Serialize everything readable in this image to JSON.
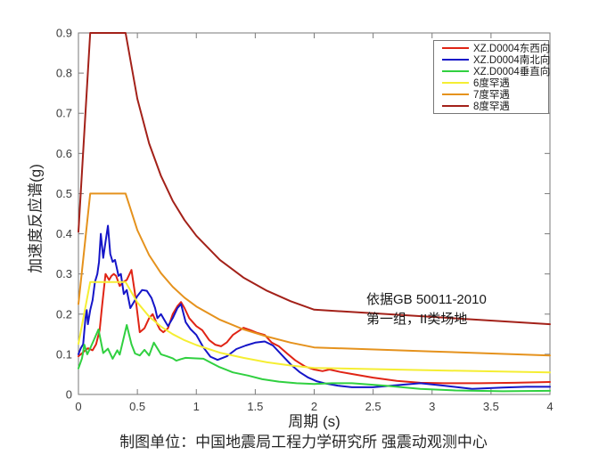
{
  "chart_data": {
    "type": "line",
    "title": "",
    "xlabel": "周期 (s)",
    "ylabel": "加速度反应谱(g)",
    "caption": "制图单位：中国地震局工程力学研究所 强震动观测中心",
    "annotation": {
      "line1": "依据GB 50011-2010",
      "line2": "第一组，II类场地"
    },
    "xlim": [
      0,
      4
    ],
    "ylim": [
      0,
      0.9
    ],
    "x_ticks": [
      0,
      0.5,
      1,
      1.5,
      2,
      2.5,
      3,
      3.5,
      4
    ],
    "x_tick_labels": [
      "0",
      "0.5",
      "1",
      "1.5",
      "2",
      "2.5",
      "3",
      "3.5",
      "4"
    ],
    "y_ticks": [
      0,
      0.1,
      0.2,
      0.3,
      0.4,
      0.5,
      0.6,
      0.7,
      0.8,
      0.9
    ],
    "y_tick_labels": [
      "0",
      "0.1",
      "0.2",
      "0.3",
      "0.4",
      "0.5",
      "0.6",
      "0.7",
      "0.8",
      "0.9"
    ],
    "grid": false,
    "legend_position": "inside-top-right",
    "axis_color": "#7a7a7a",
    "tick_label_color": "#3c3c3c",
    "series": [
      {
        "name": "XZ.D0004东西向",
        "color": "#e02415",
        "points": [
          [
            0,
            0.095
          ],
          [
            0.04,
            0.105
          ],
          [
            0.08,
            0.115
          ],
          [
            0.12,
            0.11
          ],
          [
            0.15,
            0.125
          ],
          [
            0.18,
            0.16
          ],
          [
            0.2,
            0.22
          ],
          [
            0.23,
            0.3
          ],
          [
            0.26,
            0.285
          ],
          [
            0.28,
            0.295
          ],
          [
            0.3,
            0.3
          ],
          [
            0.32,
            0.295
          ],
          [
            0.35,
            0.27
          ],
          [
            0.38,
            0.28
          ],
          [
            0.41,
            0.285
          ],
          [
            0.45,
            0.31
          ],
          [
            0.48,
            0.25
          ],
          [
            0.52,
            0.155
          ],
          [
            0.56,
            0.165
          ],
          [
            0.6,
            0.19
          ],
          [
            0.63,
            0.2
          ],
          [
            0.66,
            0.18
          ],
          [
            0.69,
            0.162
          ],
          [
            0.72,
            0.155
          ],
          [
            0.76,
            0.165
          ],
          [
            0.8,
            0.2
          ],
          [
            0.84,
            0.22
          ],
          [
            0.87,
            0.23
          ],
          [
            0.9,
            0.215
          ],
          [
            0.94,
            0.19
          ],
          [
            1.0,
            0.17
          ],
          [
            1.05,
            0.16
          ],
          [
            1.11,
            0.135
          ],
          [
            1.16,
            0.124
          ],
          [
            1.21,
            0.12
          ],
          [
            1.26,
            0.13
          ],
          [
            1.31,
            0.148
          ],
          [
            1.36,
            0.158
          ],
          [
            1.4,
            0.166
          ],
          [
            1.46,
            0.16
          ],
          [
            1.52,
            0.153
          ],
          [
            1.58,
            0.148
          ],
          [
            1.64,
            0.129
          ],
          [
            1.7,
            0.12
          ],
          [
            1.77,
            0.102
          ],
          [
            1.84,
            0.085
          ],
          [
            1.92,
            0.07
          ],
          [
            2.0,
            0.062
          ],
          [
            2.07,
            0.058
          ],
          [
            2.13,
            0.062
          ],
          [
            2.22,
            0.056
          ],
          [
            2.32,
            0.051
          ],
          [
            2.5,
            0.042
          ],
          [
            2.7,
            0.034
          ],
          [
            2.9,
            0.029
          ],
          [
            3.1,
            0.028
          ],
          [
            3.4,
            0.028
          ],
          [
            3.7,
            0.029
          ],
          [
            4.0,
            0.031
          ]
        ]
      },
      {
        "name": "XZ.D0004南北向",
        "color": "#1515c8",
        "points": [
          [
            0,
            0.1
          ],
          [
            0.02,
            0.115
          ],
          [
            0.04,
            0.125
          ],
          [
            0.06,
            0.19
          ],
          [
            0.07,
            0.21
          ],
          [
            0.08,
            0.175
          ],
          [
            0.1,
            0.21
          ],
          [
            0.12,
            0.235
          ],
          [
            0.14,
            0.28
          ],
          [
            0.16,
            0.3
          ],
          [
            0.175,
            0.33
          ],
          [
            0.19,
            0.4
          ],
          [
            0.21,
            0.34
          ],
          [
            0.23,
            0.38
          ],
          [
            0.25,
            0.42
          ],
          [
            0.27,
            0.35
          ],
          [
            0.29,
            0.33
          ],
          [
            0.31,
            0.335
          ],
          [
            0.34,
            0.295
          ],
          [
            0.36,
            0.3
          ],
          [
            0.385,
            0.25
          ],
          [
            0.41,
            0.26
          ],
          [
            0.44,
            0.215
          ],
          [
            0.47,
            0.23
          ],
          [
            0.5,
            0.245
          ],
          [
            0.54,
            0.26
          ],
          [
            0.58,
            0.258
          ],
          [
            0.62,
            0.24
          ],
          [
            0.65,
            0.215
          ],
          [
            0.67,
            0.19
          ],
          [
            0.7,
            0.2
          ],
          [
            0.73,
            0.185
          ],
          [
            0.76,
            0.17
          ],
          [
            0.8,
            0.19
          ],
          [
            0.84,
            0.215
          ],
          [
            0.87,
            0.225
          ],
          [
            0.91,
            0.18
          ],
          [
            0.95,
            0.163
          ],
          [
            1.0,
            0.148
          ],
          [
            1.06,
            0.117
          ],
          [
            1.12,
            0.094
          ],
          [
            1.18,
            0.086
          ],
          [
            1.26,
            0.095
          ],
          [
            1.34,
            0.113
          ],
          [
            1.42,
            0.122
          ],
          [
            1.5,
            0.129
          ],
          [
            1.58,
            0.132
          ],
          [
            1.65,
            0.122
          ],
          [
            1.72,
            0.1
          ],
          [
            1.8,
            0.075
          ],
          [
            1.88,
            0.055
          ],
          [
            1.95,
            0.042
          ],
          [
            2.02,
            0.033
          ],
          [
            2.1,
            0.027
          ],
          [
            2.2,
            0.022
          ],
          [
            2.32,
            0.018
          ],
          [
            2.5,
            0.018
          ],
          [
            2.7,
            0.023
          ],
          [
            2.9,
            0.028
          ],
          [
            3.1,
            0.022
          ],
          [
            3.34,
            0.014
          ],
          [
            3.6,
            0.017
          ],
          [
            3.8,
            0.019
          ],
          [
            4.0,
            0.019
          ]
        ]
      },
      {
        "name": "XZ.D0004垂直向",
        "color": "#30d040",
        "points": [
          [
            0,
            0.065
          ],
          [
            0.03,
            0.09
          ],
          [
            0.05,
            0.124
          ],
          [
            0.075,
            0.1
          ],
          [
            0.1,
            0.115
          ],
          [
            0.13,
            0.135
          ],
          [
            0.17,
            0.162
          ],
          [
            0.21,
            0.103
          ],
          [
            0.25,
            0.114
          ],
          [
            0.29,
            0.089
          ],
          [
            0.33,
            0.11
          ],
          [
            0.35,
            0.099
          ],
          [
            0.41,
            0.173
          ],
          [
            0.45,
            0.125
          ],
          [
            0.48,
            0.102
          ],
          [
            0.52,
            0.097
          ],
          [
            0.56,
            0.111
          ],
          [
            0.6,
            0.097
          ],
          [
            0.64,
            0.129
          ],
          [
            0.7,
            0.1
          ],
          [
            0.75,
            0.095
          ],
          [
            0.8,
            0.09
          ],
          [
            0.83,
            0.084
          ],
          [
            0.87,
            0.088
          ],
          [
            0.91,
            0.091
          ],
          [
            0.98,
            0.09
          ],
          [
            1.06,
            0.089
          ],
          [
            1.13,
            0.078
          ],
          [
            1.19,
            0.069
          ],
          [
            1.31,
            0.055
          ],
          [
            1.44,
            0.047
          ],
          [
            1.56,
            0.038
          ],
          [
            1.7,
            0.032
          ],
          [
            1.85,
            0.028
          ],
          [
            2.0,
            0.026
          ],
          [
            2.15,
            0.028
          ],
          [
            2.32,
            0.028
          ],
          [
            2.6,
            0.022
          ],
          [
            2.9,
            0.014
          ],
          [
            3.2,
            0.01
          ],
          [
            3.6,
            0.008
          ],
          [
            4.0,
            0.009
          ]
        ]
      },
      {
        "name": "6度罕遇",
        "color": "#f5ee33",
        "points": [
          [
            0,
            0.126
          ],
          [
            0.1,
            0.28
          ],
          [
            0.4,
            0.28
          ],
          [
            0.5,
            0.229
          ],
          [
            0.6,
            0.194
          ],
          [
            0.7,
            0.169
          ],
          [
            0.8,
            0.15
          ],
          [
            0.9,
            0.135
          ],
          [
            1.0,
            0.123
          ],
          [
            1.2,
            0.104
          ],
          [
            1.4,
            0.091
          ],
          [
            1.6,
            0.08
          ],
          [
            1.8,
            0.072
          ],
          [
            2.0,
            0.066
          ],
          [
            3.0,
            0.06
          ],
          [
            4.0,
            0.055
          ]
        ]
      },
      {
        "name": "7度罕遇",
        "color": "#e5921d",
        "points": [
          [
            0,
            0.225
          ],
          [
            0.1,
            0.5
          ],
          [
            0.4,
            0.5
          ],
          [
            0.5,
            0.409
          ],
          [
            0.6,
            0.347
          ],
          [
            0.7,
            0.302
          ],
          [
            0.8,
            0.268
          ],
          [
            0.9,
            0.241
          ],
          [
            1.0,
            0.219
          ],
          [
            1.2,
            0.186
          ],
          [
            1.4,
            0.162
          ],
          [
            1.6,
            0.144
          ],
          [
            1.8,
            0.129
          ],
          [
            2.0,
            0.117
          ],
          [
            3.0,
            0.107
          ],
          [
            4.0,
            0.097
          ]
        ]
      },
      {
        "name": "8度罕遇",
        "color": "#a32119",
        "points": [
          [
            0,
            0.405
          ],
          [
            0.1,
            0.9
          ],
          [
            0.4,
            0.9
          ],
          [
            0.5,
            0.736
          ],
          [
            0.6,
            0.625
          ],
          [
            0.7,
            0.544
          ],
          [
            0.8,
            0.482
          ],
          [
            0.9,
            0.434
          ],
          [
            1.0,
            0.395
          ],
          [
            1.2,
            0.335
          ],
          [
            1.4,
            0.291
          ],
          [
            1.6,
            0.258
          ],
          [
            1.8,
            0.232
          ],
          [
            2.0,
            0.211
          ],
          [
            3.0,
            0.193
          ],
          [
            4.0,
            0.175
          ]
        ]
      }
    ]
  }
}
